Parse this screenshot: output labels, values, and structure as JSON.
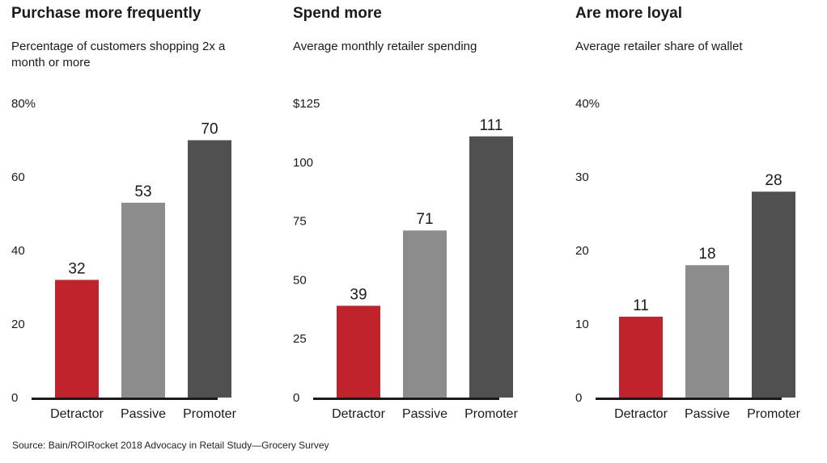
{
  "colors": {
    "detractor": "#c0232b",
    "passive": "#8c8c8c",
    "promoter": "#505050",
    "axis": "#1a1a1a"
  },
  "chart_data": [
    {
      "type": "bar",
      "title": "Purchase more frequently",
      "subtitle": "Percentage of customers shopping 2x a month or more",
      "categories": [
        "Detractor",
        "Passive",
        "Promoter"
      ],
      "values": [
        32,
        53,
        70
      ],
      "value_labels": [
        "32",
        "53",
        "70"
      ],
      "ylim": [
        0,
        80
      ],
      "yticks": [
        0,
        20,
        40,
        60,
        80
      ],
      "ytick_labels": [
        "0",
        "20",
        "40",
        "60",
        "80%"
      ],
      "grid": false
    },
    {
      "type": "bar",
      "title": "Spend more",
      "subtitle": "Average monthly retailer spending",
      "categories": [
        "Detractor",
        "Passive",
        "Promoter"
      ],
      "values": [
        39,
        71,
        111
      ],
      "value_labels": [
        "39",
        "71",
        "111"
      ],
      "ylim": [
        0,
        125
      ],
      "yticks": [
        0,
        25,
        50,
        75,
        100,
        125
      ],
      "ytick_labels": [
        "0",
        "25",
        "50",
        "75",
        "100",
        "$125"
      ],
      "grid": false
    },
    {
      "type": "bar",
      "title": "Are more loyal",
      "subtitle": "Average retailer share of wallet",
      "categories": [
        "Detractor",
        "Passive",
        "Promoter"
      ],
      "values": [
        11,
        18,
        28
      ],
      "value_labels": [
        "11",
        "18",
        "28"
      ],
      "ylim": [
        0,
        40
      ],
      "yticks": [
        0,
        10,
        20,
        30,
        40
      ],
      "ytick_labels": [
        "0",
        "10",
        "20",
        "30",
        "40%"
      ],
      "grid": false
    }
  ],
  "source": "Source: Bain/ROIRocket 2018 Advocacy in Retail Study—Grocery Survey"
}
